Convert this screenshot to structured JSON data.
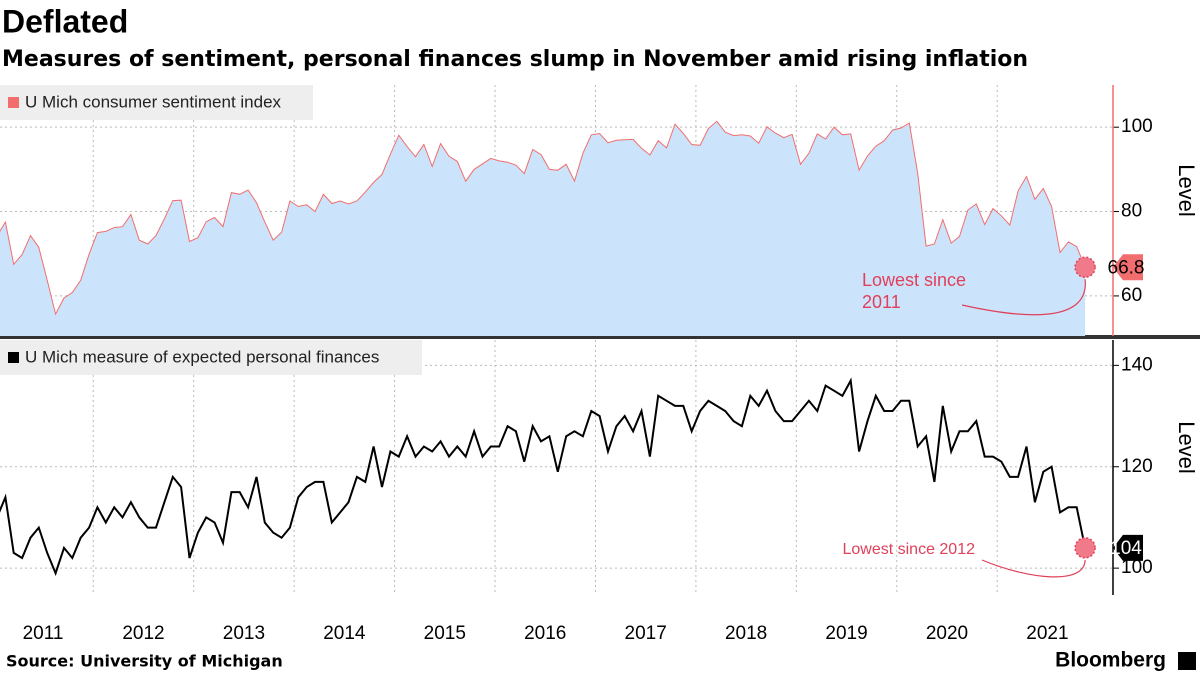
{
  "title": "Deflated",
  "subtitle": "Measures of sentiment, personal finances slump in November amid rising inflation",
  "source": "Source: University of Michigan",
  "brand": "Bloomberg",
  "chart_data": [
    {
      "type": "area",
      "ylabel": "Level",
      "series": [
        {
          "name": "U Mich consumer sentiment index",
          "color": "#f26d6d",
          "fill": "#cce4fb",
          "values": [
            74.2,
            77.5,
            67.5,
            69.8,
            74.3,
            71.5,
            63.7,
            55.7,
            59.5,
            60.8,
            63.7,
            69.9,
            75.0,
            75.3,
            76.2,
            76.4,
            79.3,
            73.2,
            72.3,
            74.3,
            78.3,
            82.6,
            82.7,
            72.9,
            73.8,
            77.6,
            78.6,
            76.4,
            84.5,
            84.1,
            85.1,
            82.1,
            77.5,
            73.2,
            75.1,
            82.5,
            81.2,
            81.6,
            80.0,
            84.1,
            81.9,
            82.5,
            81.8,
            82.5,
            84.6,
            86.9,
            88.8,
            93.6,
            98.1,
            95.4,
            93.0,
            95.9,
            90.7,
            96.1,
            93.1,
            91.9,
            87.2,
            90.0,
            91.3,
            92.6,
            92.0,
            91.7,
            91.0,
            89.0,
            94.7,
            93.5,
            90.0,
            89.8,
            91.2,
            87.2,
            93.8,
            98.2,
            98.5,
            96.3,
            96.9,
            97.0,
            97.1,
            95.0,
            93.4,
            96.8,
            95.1,
            100.7,
            98.5,
            95.9,
            95.7,
            99.7,
            101.4,
            98.8,
            98.0,
            98.2,
            97.9,
            96.2,
            100.1,
            98.6,
            97.5,
            98.3,
            91.2,
            93.8,
            98.4,
            97.2,
            100.0,
            98.2,
            98.4,
            89.8,
            93.2,
            95.5,
            96.8,
            99.3,
            99.8,
            101.0,
            89.1,
            71.8,
            72.3,
            78.1,
            72.5,
            74.1,
            80.4,
            81.8,
            76.9,
            80.7,
            79.0,
            76.8,
            84.9,
            88.3,
            82.9,
            85.5,
            81.2,
            70.3,
            72.8,
            71.7,
            66.8
          ]
        }
      ],
      "ylim": [
        50.5,
        110
      ],
      "yticks": [
        60,
        80,
        100
      ],
      "grid": true,
      "annotation": "Lowest since 2011"
    },
    {
      "type": "line",
      "ylabel": "Level",
      "categories": [
        "2011",
        null,
        null,
        null,
        null,
        null,
        null,
        null,
        null,
        null,
        null,
        null,
        "2012",
        null,
        null,
        null,
        null,
        null,
        null,
        null,
        null,
        null,
        null,
        null,
        "2013",
        null,
        null,
        null,
        null,
        null,
        null,
        null,
        null,
        null,
        null,
        null,
        "2014",
        null,
        null,
        null,
        null,
        null,
        null,
        null,
        null,
        null,
        null,
        null,
        "2015",
        null,
        null,
        null,
        null,
        null,
        null,
        null,
        null,
        null,
        null,
        null,
        "2016",
        null,
        null,
        null,
        null,
        null,
        null,
        null,
        null,
        null,
        null,
        null,
        "2017",
        null,
        null,
        null,
        null,
        null,
        null,
        null,
        null,
        null,
        null,
        null,
        "2018",
        null,
        null,
        null,
        null,
        null,
        null,
        null,
        null,
        null,
        null,
        null,
        "2019",
        null,
        null,
        null,
        null,
        null,
        null,
        null,
        null,
        null,
        null,
        null,
        "2020",
        null,
        null,
        null,
        null,
        null,
        null,
        null,
        null,
        null,
        null,
        null,
        "2021",
        null,
        null,
        null,
        null,
        null,
        null,
        null,
        null,
        null,
        null
      ],
      "series": [
        {
          "name": "U Mich measure of expected personal finances",
          "color": "#000000",
          "values": [
            110,
            114,
            103,
            102,
            106,
            108,
            103,
            99,
            104,
            102,
            106,
            108,
            112,
            109,
            112,
            110,
            113,
            110,
            108,
            108,
            113,
            118,
            116,
            102,
            107,
            110,
            109,
            105,
            115,
            115,
            112,
            118,
            109,
            107,
            106,
            108,
            114,
            116,
            117,
            117,
            109,
            111,
            113,
            118,
            117,
            124,
            116,
            123,
            122,
            126,
            122,
            124,
            123,
            125,
            122,
            124,
            122,
            127,
            122,
            124,
            124,
            128,
            127,
            121,
            128,
            125,
            126,
            119,
            126,
            127,
            126,
            131,
            130,
            123,
            128,
            130,
            127,
            131,
            122,
            134,
            133,
            132,
            132,
            127,
            131,
            133,
            132,
            131,
            129,
            128,
            134,
            132,
            135,
            131,
            129,
            129,
            131,
            133,
            131,
            136,
            135,
            134,
            137,
            123,
            129,
            134,
            131,
            131,
            133,
            133,
            124,
            126,
            117,
            132,
            123,
            127,
            127,
            129,
            122,
            122,
            121,
            118,
            118,
            124,
            113,
            119,
            120,
            111,
            112,
            112,
            104
          ]
        }
      ],
      "ylim": [
        94.7,
        145
      ],
      "yticks": [
        100,
        120,
        140
      ],
      "grid": true,
      "annotation": "Lowest since 2012"
    }
  ]
}
